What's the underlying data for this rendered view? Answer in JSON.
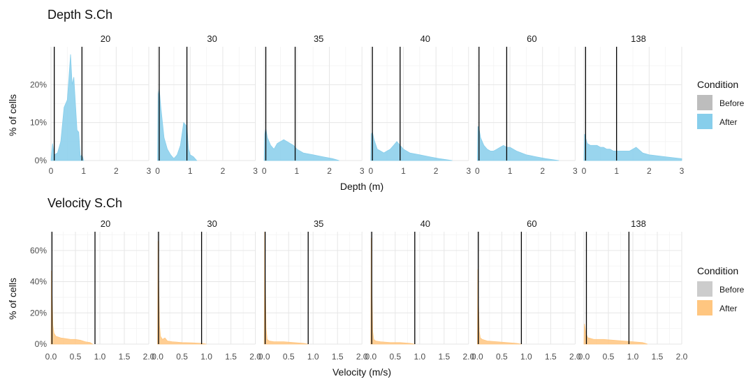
{
  "chart_data": [
    {
      "type": "area",
      "title": "Depth S.Ch",
      "xlabel": "Depth (m)",
      "ylabel": "% of cells",
      "facets": [
        "20",
        "30",
        "35",
        "40",
        "60",
        "138"
      ],
      "xlim": [
        0,
        3
      ],
      "ylim": [
        0,
        30
      ],
      "x_ticks": [
        0,
        1,
        2,
        3
      ],
      "x_tick_labels": [
        "0",
        "1",
        "2",
        "3"
      ],
      "y_ticks": [
        0,
        10,
        20
      ],
      "y_tick_labels": [
        "0%",
        "10%",
        "20%"
      ],
      "grid": true,
      "legend": {
        "title": "Condition",
        "position": "right",
        "entries": [
          {
            "label": "Before",
            "color": "#bdbdbd"
          },
          {
            "label": "After",
            "color": "#87ceeb"
          }
        ]
      },
      "vlines": [
        [
          0.1,
          0.95
        ],
        [
          0.05,
          0.9
        ],
        [
          0.05,
          0.95
        ],
        [
          0.05,
          0.9
        ],
        [
          0.05,
          0.9
        ],
        [
          0.05,
          1.0
        ]
      ],
      "series": [
        {
          "name": "After",
          "color": "#87ceeb",
          "values": [
            {
              "x": [
                0,
                0.05,
                0.1,
                0.2,
                0.3,
                0.4,
                0.5,
                0.55,
                0.6,
                0.65,
                0.7,
                0.75,
                0.8,
                0.85,
                0.9,
                0.95,
                1.0
              ],
              "y": [
                0,
                4.5,
                1.5,
                2,
                5,
                14,
                16,
                22,
                28,
                20,
                22,
                15,
                8,
                7.5,
                1,
                1.5,
                0
              ]
            },
            {
              "x": [
                0,
                0.02,
                0.05,
                0.1,
                0.2,
                0.3,
                0.4,
                0.5,
                0.6,
                0.7,
                0.8,
                0.9,
                0.95,
                1.0,
                1.1,
                1.2
              ],
              "y": [
                0,
                17.5,
                19,
                14,
                6,
                3,
                1.5,
                0.5,
                1.5,
                4,
                10,
                9,
                3,
                1.5,
                1,
                0
              ]
            },
            {
              "x": [
                0,
                0.02,
                0.05,
                0.1,
                0.2,
                0.3,
                0.4,
                0.5,
                0.6,
                0.7,
                0.8,
                0.9,
                1.0,
                1.2,
                1.5,
                1.8,
                2.1,
                2.3
              ],
              "y": [
                0,
                7,
                8.5,
                6,
                4,
                3,
                4.5,
                5,
                5.5,
                5,
                4.5,
                4,
                3,
                2,
                1.5,
                1,
                0.5,
                0
              ]
            },
            {
              "x": [
                0,
                0.02,
                0.05,
                0.1,
                0.2,
                0.3,
                0.4,
                0.5,
                0.6,
                0.7,
                0.8,
                0.9,
                1.0,
                1.2,
                1.5,
                1.8,
                2.1,
                2.5
              ],
              "y": [
                0,
                7,
                7.5,
                5.5,
                3,
                2.5,
                2,
                2.5,
                3,
                4,
                5,
                4,
                3,
                2,
                1.5,
                1,
                0.5,
                0
              ]
            },
            {
              "x": [
                0,
                0.02,
                0.05,
                0.1,
                0.2,
                0.3,
                0.4,
                0.5,
                0.6,
                0.7,
                0.8,
                0.9,
                1.0,
                1.2,
                1.5,
                1.8,
                2.1,
                2.5
              ],
              "y": [
                0,
                9,
                8.5,
                6,
                4,
                3,
                2.5,
                2.5,
                3,
                3.5,
                4,
                3.5,
                3.5,
                2.5,
                1.5,
                1,
                0.5,
                0
              ]
            },
            {
              "x": [
                0,
                0.02,
                0.05,
                0.1,
                0.2,
                0.3,
                0.4,
                0.5,
                0.6,
                0.7,
                0.8,
                0.9,
                1.0,
                1.2,
                1.4,
                1.6,
                1.8,
                2.0,
                2.5,
                3.0
              ],
              "y": [
                0,
                7,
                6,
                4.5,
                4,
                4,
                4,
                3.5,
                3.5,
                3,
                3,
                2.5,
                2.5,
                2.5,
                2.5,
                3.5,
                2,
                1.5,
                1,
                0.5
              ]
            }
          ]
        }
      ]
    },
    {
      "type": "area",
      "title": "Velocity S.Ch",
      "xlabel": "Velocity (m/s)",
      "ylabel": "% of cells",
      "facets": [
        "20",
        "30",
        "35",
        "40",
        "60",
        "138"
      ],
      "xlim": [
        0,
        2
      ],
      "ylim": [
        0,
        72
      ],
      "x_ticks": [
        0,
        0.5,
        1,
        1.5,
        2
      ],
      "x_tick_labels": [
        "0.0",
        "0.5",
        "1.0",
        "1.5",
        "2.0"
      ],
      "y_ticks": [
        0,
        20,
        40,
        60
      ],
      "y_tick_labels": [
        "0%",
        "20%",
        "40%",
        "60%"
      ],
      "grid": true,
      "legend": {
        "title": "Condition",
        "position": "right",
        "entries": [
          {
            "label": "Before",
            "color": "#cccccc"
          },
          {
            "label": "After",
            "color": "#ffc680"
          }
        ]
      },
      "vlines": [
        [
          0.02,
          0.9
        ],
        [
          0.02,
          0.9
        ],
        [
          0.02,
          0.9
        ],
        [
          0.02,
          0.9
        ],
        [
          0.02,
          0.9
        ],
        [
          0.05,
          0.92
        ]
      ],
      "series": [
        {
          "name": "After",
          "color": "#ffc680",
          "values": [
            {
              "x": [
                0,
                0.01,
                0.02,
                0.04,
                0.06,
                0.1,
                0.2,
                0.3,
                0.4,
                0.5,
                0.6,
                0.7,
                0.8,
                0.85
              ],
              "y": [
                0,
                47,
                35,
                12,
                7,
                5,
                4,
                3.5,
                3,
                3,
                2.5,
                1.5,
                1,
                0
              ]
            },
            {
              "x": [
                0,
                0.01,
                0.02,
                0.04,
                0.06,
                0.1,
                0.15,
                0.2,
                0.3,
                0.5,
                0.7,
                0.9,
                1.0
              ],
              "y": [
                0,
                66,
                45,
                12,
                5,
                3,
                4,
                2,
                1.5,
                1,
                0.8,
                0.5,
                0
              ]
            },
            {
              "x": [
                0,
                0.01,
                0.02,
                0.04,
                0.06,
                0.1,
                0.2,
                0.4,
                0.6,
                0.8,
                0.9
              ],
              "y": [
                0,
                72,
                45,
                10,
                3,
                2,
                1.5,
                1.5,
                1,
                0.5,
                0
              ]
            },
            {
              "x": [
                0,
                0.01,
                0.02,
                0.04,
                0.06,
                0.1,
                0.2,
                0.4,
                0.6,
                0.8,
                0.9
              ],
              "y": [
                0,
                68,
                40,
                8,
                3,
                2,
                1.5,
                1,
                1,
                0.5,
                0
              ]
            },
            {
              "x": [
                0,
                0.01,
                0.02,
                0.04,
                0.06,
                0.1,
                0.2,
                0.4,
                0.6,
                0.8,
                0.9
              ],
              "y": [
                0,
                48,
                30,
                8,
                4,
                3,
                2,
                1.5,
                1,
                0.5,
                0
              ]
            },
            {
              "x": [
                0,
                0.01,
                0.03,
                0.05,
                0.08,
                0.1,
                0.2,
                0.4,
                0.6,
                0.8,
                1.0,
                1.2,
                1.3
              ],
              "y": [
                0,
                13,
                9,
                6,
                4,
                4,
                3,
                3,
                2.5,
                2,
                1.5,
                1,
                0
              ]
            }
          ]
        }
      ]
    }
  ]
}
